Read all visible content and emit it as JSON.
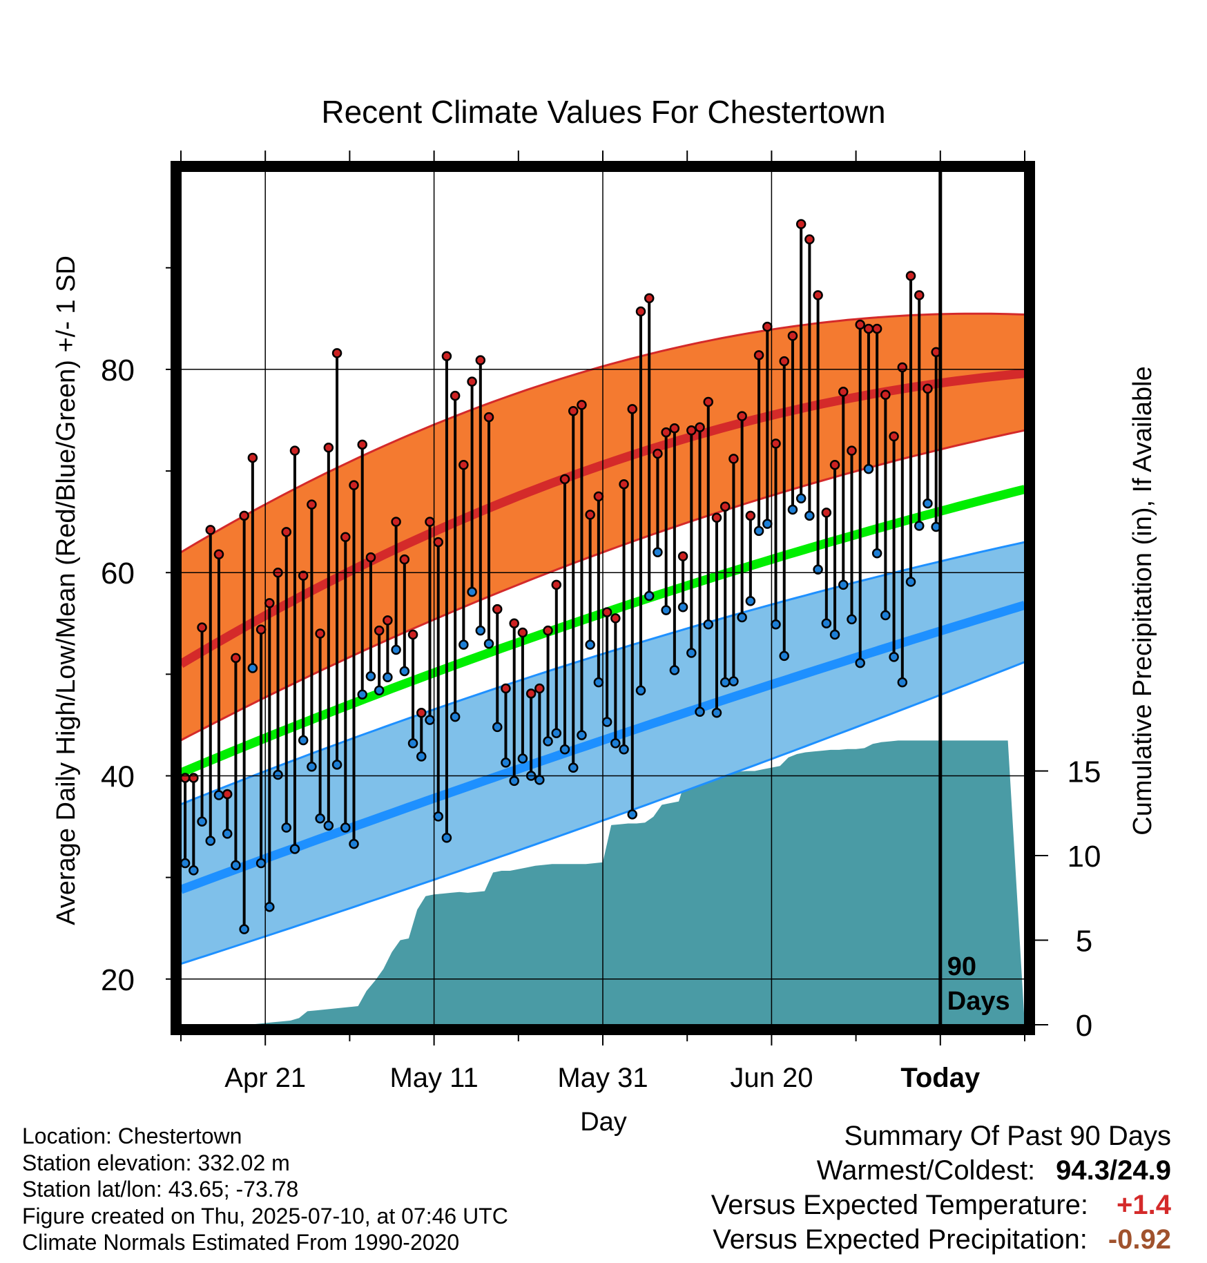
{
  "chart_data": {
    "type": "line",
    "title": "Recent Climate Values For Chestertown",
    "xlabel": "Day",
    "ylabel": "Average Daily High/Low/Mean (Red/Blue/Green) +/- 1 SD",
    "y2label": "Cumulative Precipitation (in), If Available",
    "xticks": [
      "Apr 21",
      "May 11",
      "May 31",
      "Jun 20",
      "Today"
    ],
    "xtick_days": [
      10,
      30,
      50,
      70,
      90
    ],
    "yticks": [
      20,
      40,
      60,
      80
    ],
    "ylim": [
      15.5,
      99.5
    ],
    "y2ticks": [
      0,
      5,
      10,
      15
    ],
    "y2lim": [
      0,
      50
    ],
    "xlim": [
      0,
      100
    ],
    "today_label": "90\nDays",
    "today_day": 90,
    "colors": {
      "high_band": "#f47a30",
      "high_mean": "#d42a2a",
      "high_band_edge": "#d42a2a",
      "low_band": "#7fc0ea",
      "low_mean": "#1e90ff",
      "low_band_edge": "#1e90ff",
      "mean_line": "#00ee00",
      "precip": "#4a9ba5",
      "high_dot": "#cc2222",
      "low_dot": "#1e7fd6"
    },
    "normal_high": {
      "start": 51,
      "mid": 70.6,
      "end": 79.6
    },
    "normal_high_sd_upper": {
      "start": 62,
      "mid": 80.3,
      "end": 85.4
    },
    "normal_high_sd_lower": {
      "start": 43.5,
      "mid": 62,
      "end": 74
    },
    "normal_mean": {
      "start": 40.3,
      "mid": 56,
      "end": 68.2
    },
    "normal_low": {
      "start": 28.8,
      "mid": 43.5,
      "end": 56.8
    },
    "normal_low_sd_upper": {
      "start": 37.2,
      "mid": 52,
      "end": 63
    },
    "normal_low_sd_lower": {
      "start": 21.5,
      "mid": 35.6,
      "end": 51.2
    },
    "daily_high": [
      39.8,
      39.8,
      54.6,
      64.2,
      61.8,
      38.2,
      51.6,
      65.6,
      71.3,
      54.4,
      57.0,
      60.0,
      64.0,
      72.0,
      59.7,
      66.7,
      54.0,
      72.3,
      81.6,
      63.5,
      68.6,
      72.6,
      61.5,
      54.3,
      55.3,
      65.0,
      61.3,
      53.9,
      46.2,
      65.0,
      63.0,
      81.3,
      77.4,
      70.6,
      78.8,
      80.9,
      75.3,
      56.4,
      48.6,
      55.0,
      54.1,
      48.1,
      48.6,
      54.3,
      58.8,
      69.2,
      75.9,
      76.5,
      65.7,
      67.5,
      56.1,
      55.5,
      68.7,
      76.1,
      85.7,
      87.0,
      71.7,
      73.8,
      74.2,
      61.6,
      74.0,
      74.3,
      76.8,
      65.4,
      66.5,
      71.2,
      75.4,
      65.6,
      81.4,
      84.2,
      72.7,
      80.8,
      83.3,
      94.3,
      92.8,
      87.3,
      65.9,
      70.6,
      77.8,
      72.0,
      84.4,
      84.0,
      84.0,
      77.5,
      73.4,
      80.2,
      89.2,
      87.3,
      78.1,
      81.7
    ],
    "daily_low": [
      31.4,
      30.7,
      35.5,
      33.6,
      38.1,
      34.3,
      31.2,
      24.9,
      50.6,
      31.4,
      27.1,
      40.1,
      34.9,
      32.8,
      43.5,
      40.9,
      35.8,
      35.1,
      41.1,
      34.9,
      33.3,
      48.0,
      49.8,
      48.4,
      49.7,
      52.4,
      50.3,
      43.2,
      41.9,
      45.5,
      36.0,
      33.9,
      45.8,
      52.9,
      58.1,
      54.3,
      53.0,
      44.8,
      41.3,
      39.5,
      41.7,
      40.0,
      39.6,
      43.4,
      44.2,
      42.6,
      40.8,
      44.0,
      52.9,
      49.2,
      45.3,
      43.2,
      42.6,
      36.2,
      48.4,
      57.7,
      62.0,
      56.3,
      50.4,
      56.6,
      52.1,
      46.3,
      54.9,
      46.2,
      49.2,
      49.3,
      55.6,
      57.2,
      64.1,
      64.8,
      54.9,
      51.8,
      66.2,
      67.3,
      65.6,
      60.3,
      55.0,
      53.9,
      58.8,
      55.4,
      51.1,
      70.2,
      61.9,
      55.8,
      51.7,
      49.2,
      59.1,
      64.6,
      66.8,
      64.5
    ],
    "cumulative_precip": [
      0,
      0,
      0,
      0,
      0,
      0,
      0,
      0,
      0,
      0.05,
      0.1,
      0.15,
      0.2,
      0.25,
      0.4,
      0.8,
      0.85,
      0.9,
      0.95,
      1.0,
      1.05,
      1.1,
      2.0,
      2.6,
      3.3,
      4.3,
      5.0,
      5.1,
      6.8,
      7.6,
      7.7,
      7.75,
      7.8,
      7.85,
      7.8,
      7.85,
      7.9,
      9.0,
      9.1,
      9.1,
      9.2,
      9.3,
      9.4,
      9.45,
      9.5,
      9.5,
      9.5,
      9.5,
      9.5,
      9.55,
      9.6,
      11.8,
      11.85,
      11.9,
      11.9,
      11.95,
      12.3,
      13.0,
      13.1,
      13.2,
      14.8,
      14.85,
      14.9,
      14.9,
      14.9,
      14.9,
      14.95,
      15.0,
      15.0,
      15.1,
      15.2,
      15.3,
      15.8,
      16.0,
      16.1,
      16.15,
      16.2,
      16.25,
      16.25,
      16.3,
      16.3,
      16.35,
      16.6,
      16.7,
      16.75,
      16.8,
      16.8,
      16.8,
      16.8,
      16.8,
      16.8,
      16.8,
      16.8,
      16.8,
      16.8,
      16.8,
      16.8,
      16.8,
      16.8
    ]
  },
  "footer": {
    "location": "Location: Chestertown",
    "elevation": "Station elevation: 332.02 m",
    "latlon": "Station lat/lon: 43.65; -73.78",
    "created": "Figure created on Thu, 2025-07-10, at 07:46 UTC",
    "normals": "Climate Normals Estimated From 1990-2020"
  },
  "summary": {
    "heading": "Summary Of Past 90 Days",
    "warm_cold_label": "Warmest/Coldest:",
    "warm_cold_value": "94.3/24.9",
    "temp_label": "Versus Expected Temperature:",
    "temp_value": "+1.4",
    "temp_color": "#d42a2a",
    "precip_label": "Versus Expected Precipitation:",
    "precip_value": "-0.92",
    "precip_color": "#a0522d"
  }
}
